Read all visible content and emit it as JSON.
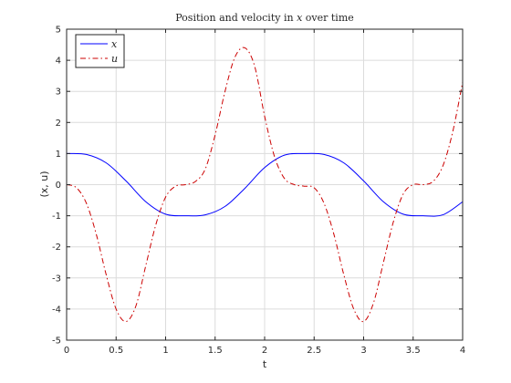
{
  "chart_data": {
    "type": "line",
    "title": "Position and velocity in x over time",
    "title_parts": {
      "prefix": "Position and velocity in ",
      "italic": "x",
      "suffix": " over time"
    },
    "xlabel": "t",
    "ylabel": "(x, u)",
    "xlim": [
      0,
      4
    ],
    "ylim": [
      -5,
      5
    ],
    "xticks": [
      0,
      0.5,
      1,
      1.5,
      2,
      2.5,
      3,
      3.5,
      4
    ],
    "xtick_labels": [
      "0",
      "0.5",
      "1",
      "1.5",
      "2",
      "2.5",
      "3",
      "3.5",
      "4"
    ],
    "yticks": [
      -5,
      -4,
      -3,
      -2,
      -1,
      0,
      1,
      2,
      3,
      4,
      5
    ],
    "ytick_labels": [
      "-5",
      "-4",
      "-3",
      "-2",
      "-1",
      "0",
      "1",
      "2",
      "3",
      "4",
      "5"
    ],
    "grid": true,
    "legend_position": "top-left",
    "series": [
      {
        "name": "x",
        "color": "#0000ff",
        "dash": "solid",
        "x": [
          0,
          0.2,
          0.4,
          0.6,
          0.8,
          1.0,
          1.2,
          1.4,
          1.6,
          1.8,
          2.0,
          2.2,
          2.4,
          2.6,
          2.8,
          3.0,
          3.2,
          3.4,
          3.6,
          3.8,
          4.0
        ],
        "y": [
          1.0,
          0.97,
          0.7,
          0.12,
          -0.55,
          -0.95,
          -1.0,
          -0.97,
          -0.7,
          -0.12,
          0.55,
          0.95,
          1.0,
          0.97,
          0.7,
          0.12,
          -0.55,
          -0.95,
          -1.0,
          -0.97,
          -0.55
        ]
      },
      {
        "name": "u",
        "color": "#cc0000",
        "dash": "dashdot",
        "x": [
          0,
          0.1,
          0.2,
          0.3,
          0.4,
          0.5,
          0.6,
          0.7,
          0.8,
          0.9,
          1.0,
          1.1,
          1.2,
          1.3,
          1.4,
          1.5,
          1.6,
          1.7,
          1.8,
          1.9,
          2.0,
          2.1,
          2.2,
          2.3,
          2.4,
          2.5,
          2.6,
          2.7,
          2.8,
          2.9,
          3.0,
          3.1,
          3.2,
          3.3,
          3.4,
          3.5,
          3.6,
          3.7,
          3.8,
          3.9,
          4.0
        ],
        "y": [
          0.0,
          -0.1,
          -0.6,
          -1.6,
          -2.9,
          -4.0,
          -4.4,
          -3.9,
          -2.6,
          -1.3,
          -0.4,
          -0.05,
          0.0,
          0.1,
          0.5,
          1.6,
          3.0,
          4.1,
          4.4,
          3.8,
          2.2,
          0.9,
          0.2,
          0.0,
          -0.05,
          -0.1,
          -0.6,
          -1.6,
          -2.9,
          -4.0,
          -4.4,
          -3.8,
          -2.5,
          -1.2,
          -0.3,
          0.0,
          0.0,
          0.1,
          0.6,
          1.7,
          3.3
        ]
      }
    ]
  }
}
